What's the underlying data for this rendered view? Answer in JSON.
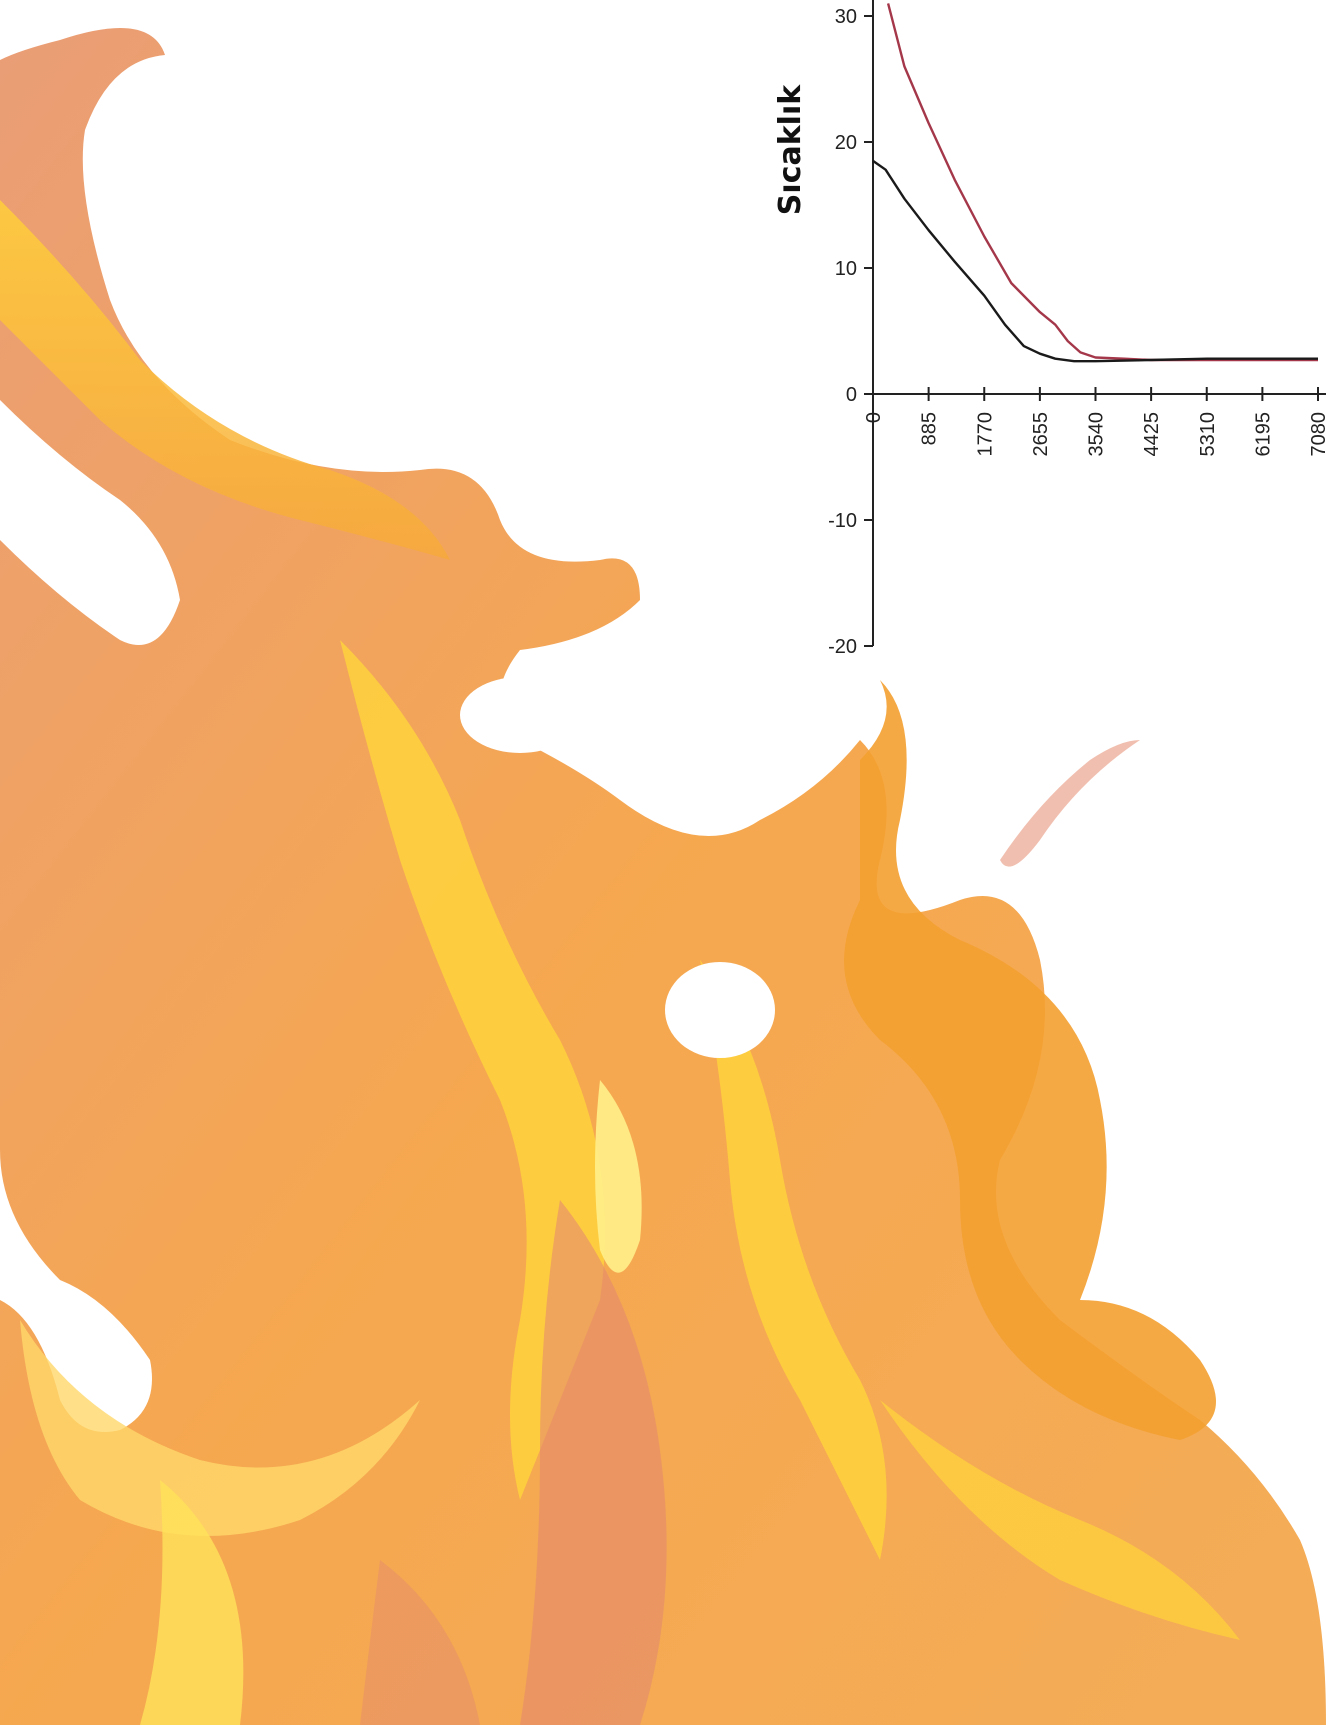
{
  "colors": {
    "flame_dark": "#e8956a",
    "flame_mid": "#f7a93b",
    "flame_light": "#ffd23c",
    "flame_highlight": "#fff08a",
    "axis": "#222222"
  },
  "chart_data": {
    "type": "line",
    "title": "",
    "xlabel": "",
    "ylabel": "Sıcaklık",
    "ylim": [
      -20,
      30
    ],
    "yticks": [
      -20,
      -10,
      0,
      10,
      20,
      30
    ],
    "xticks": [
      0,
      885,
      1770,
      2655,
      3540,
      4425,
      5310,
      6195,
      7080
    ],
    "xlim": [
      0,
      7080
    ],
    "grid": false,
    "legend": "none",
    "series": [
      {
        "color": "#a4384a",
        "points": [
          [
            240,
            31
          ],
          [
            500,
            26
          ],
          [
            885,
            21.5
          ],
          [
            1300,
            17
          ],
          [
            1770,
            12.5
          ],
          [
            2200,
            8.8
          ],
          [
            2655,
            6.5
          ],
          [
            2900,
            5.5
          ],
          [
            3100,
            4.2
          ],
          [
            3300,
            3.3
          ],
          [
            3540,
            2.9
          ],
          [
            4000,
            2.8
          ],
          [
            4425,
            2.7
          ],
          [
            5310,
            2.7
          ],
          [
            6195,
            2.7
          ],
          [
            7080,
            2.7
          ]
        ]
      },
      {
        "color": "#1a1a1a",
        "points": [
          [
            0,
            18.5
          ],
          [
            200,
            17.8
          ],
          [
            500,
            15.5
          ],
          [
            885,
            13
          ],
          [
            1300,
            10.5
          ],
          [
            1770,
            7.8
          ],
          [
            2100,
            5.5
          ],
          [
            2400,
            3.8
          ],
          [
            2655,
            3.2
          ],
          [
            2900,
            2.8
          ],
          [
            3200,
            2.6
          ],
          [
            3540,
            2.6
          ],
          [
            4425,
            2.7
          ],
          [
            5310,
            2.8
          ],
          [
            6195,
            2.8
          ],
          [
            7080,
            2.8
          ]
        ]
      }
    ]
  }
}
